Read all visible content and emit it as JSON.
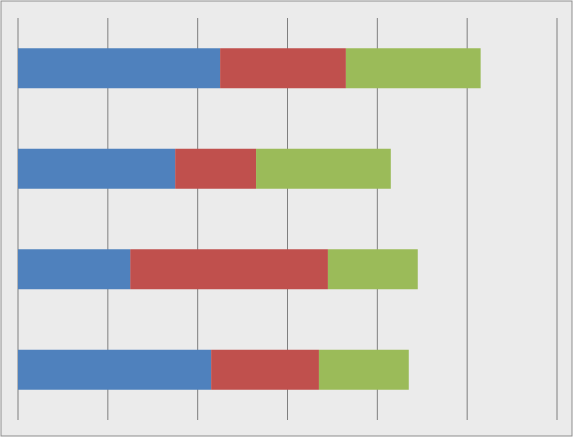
{
  "chart_data": {
    "type": "stacked-bar-horizontal",
    "categories": [
      null,
      null,
      null,
      null
    ],
    "series": [
      {
        "color": "#4f81bd",
        "values": [
          2.25,
          1.75,
          1.25,
          2.15
        ]
      },
      {
        "color": "#c0504d",
        "values": [
          1.4,
          0.9,
          2.2,
          1.2
        ]
      },
      {
        "color": "#9bbb59",
        "values": [
          1.5,
          1.5,
          1.0,
          1.0
        ]
      }
    ],
    "xlim": [
      0,
      6
    ],
    "xticks": [
      0,
      1,
      2,
      3,
      4,
      5,
      6
    ],
    "grid": true
  }
}
